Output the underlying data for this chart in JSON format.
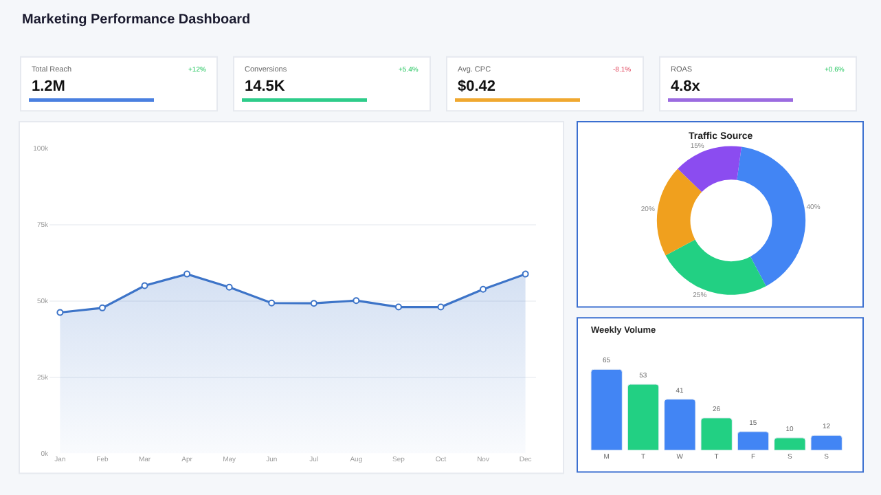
{
  "chart_data": [
    {
      "type": "other",
      "title": "Marketing Performance Dashboard"
    },
    {
      "type": "other",
      "title": "Total Reach",
      "subtitle": "1.2M",
      "annotations": [
        "+12%"
      ],
      "colors": [
        "#4a80e0",
        "#22c55e"
      ]
    },
    {
      "type": "other",
      "title": "Conversions",
      "subtitle": "14.5K",
      "annotations": [
        "+5.4%"
      ],
      "colors": [
        "#2ecc8a",
        "#22c55e"
      ]
    },
    {
      "type": "other",
      "title": "Avg. CPC",
      "subtitle": "$0.42",
      "annotations": [
        "-8.1%"
      ],
      "colors": [
        "#f0a830",
        "#e0435a"
      ]
    },
    {
      "type": "other",
      "title": "ROAS",
      "subtitle": "4.8x",
      "annotations": [
        "+0.6%"
      ],
      "colors": [
        "#9b6be0",
        "#22c55e"
      ]
    },
    {
      "type": "area",
      "categories": [
        "Jan",
        "Feb",
        "Mar",
        "Apr",
        "May",
        "Jun",
        "Jul",
        "Aug",
        "Sep",
        "Oct",
        "Nov",
        "Dec"
      ],
      "series": [
        {
          "color": "#3d74c8",
          "values": [
            46.2,
            47.7,
            55.0,
            58.8,
            54.5,
            49.3,
            49.2,
            50.1,
            48.0,
            48.0,
            53.8,
            58.8
          ]
        }
      ],
      "ylim": [
        0,
        100
      ],
      "yticks": [
        {
          "value": 0,
          "label": "0k"
        },
        {
          "value": 25,
          "label": "25k"
        },
        {
          "value": 50,
          "label": "50k"
        },
        {
          "value": 75,
          "label": "75k"
        },
        {
          "value": 100,
          "label": "100k"
        }
      ],
      "grid": "y",
      "marker": "circle",
      "line_style": "solid"
    },
    {
      "type": "donut",
      "title": "Traffic Source",
      "categories": [
        null,
        null,
        null,
        null
      ],
      "values": [
        40,
        25,
        20,
        15
      ],
      "colors": [
        "#4285f4",
        "#22d083",
        "#f0a01e",
        "#8b4cf0"
      ],
      "value_labels": [
        "40%",
        "25%",
        "20%",
        "15%"
      ]
    },
    {
      "type": "bar",
      "title": "Weekly Volume",
      "categories": [
        "M",
        "T",
        "W",
        "T",
        "F",
        "S",
        "S"
      ],
      "values": [
        65,
        53,
        41,
        26,
        15,
        10,
        12
      ],
      "colors": [
        "#4285f4",
        "#22d083",
        "#4285f4",
        "#22d083",
        "#4285f4",
        "#22d083",
        "#4285f4"
      ],
      "data_labels": true
    }
  ]
}
